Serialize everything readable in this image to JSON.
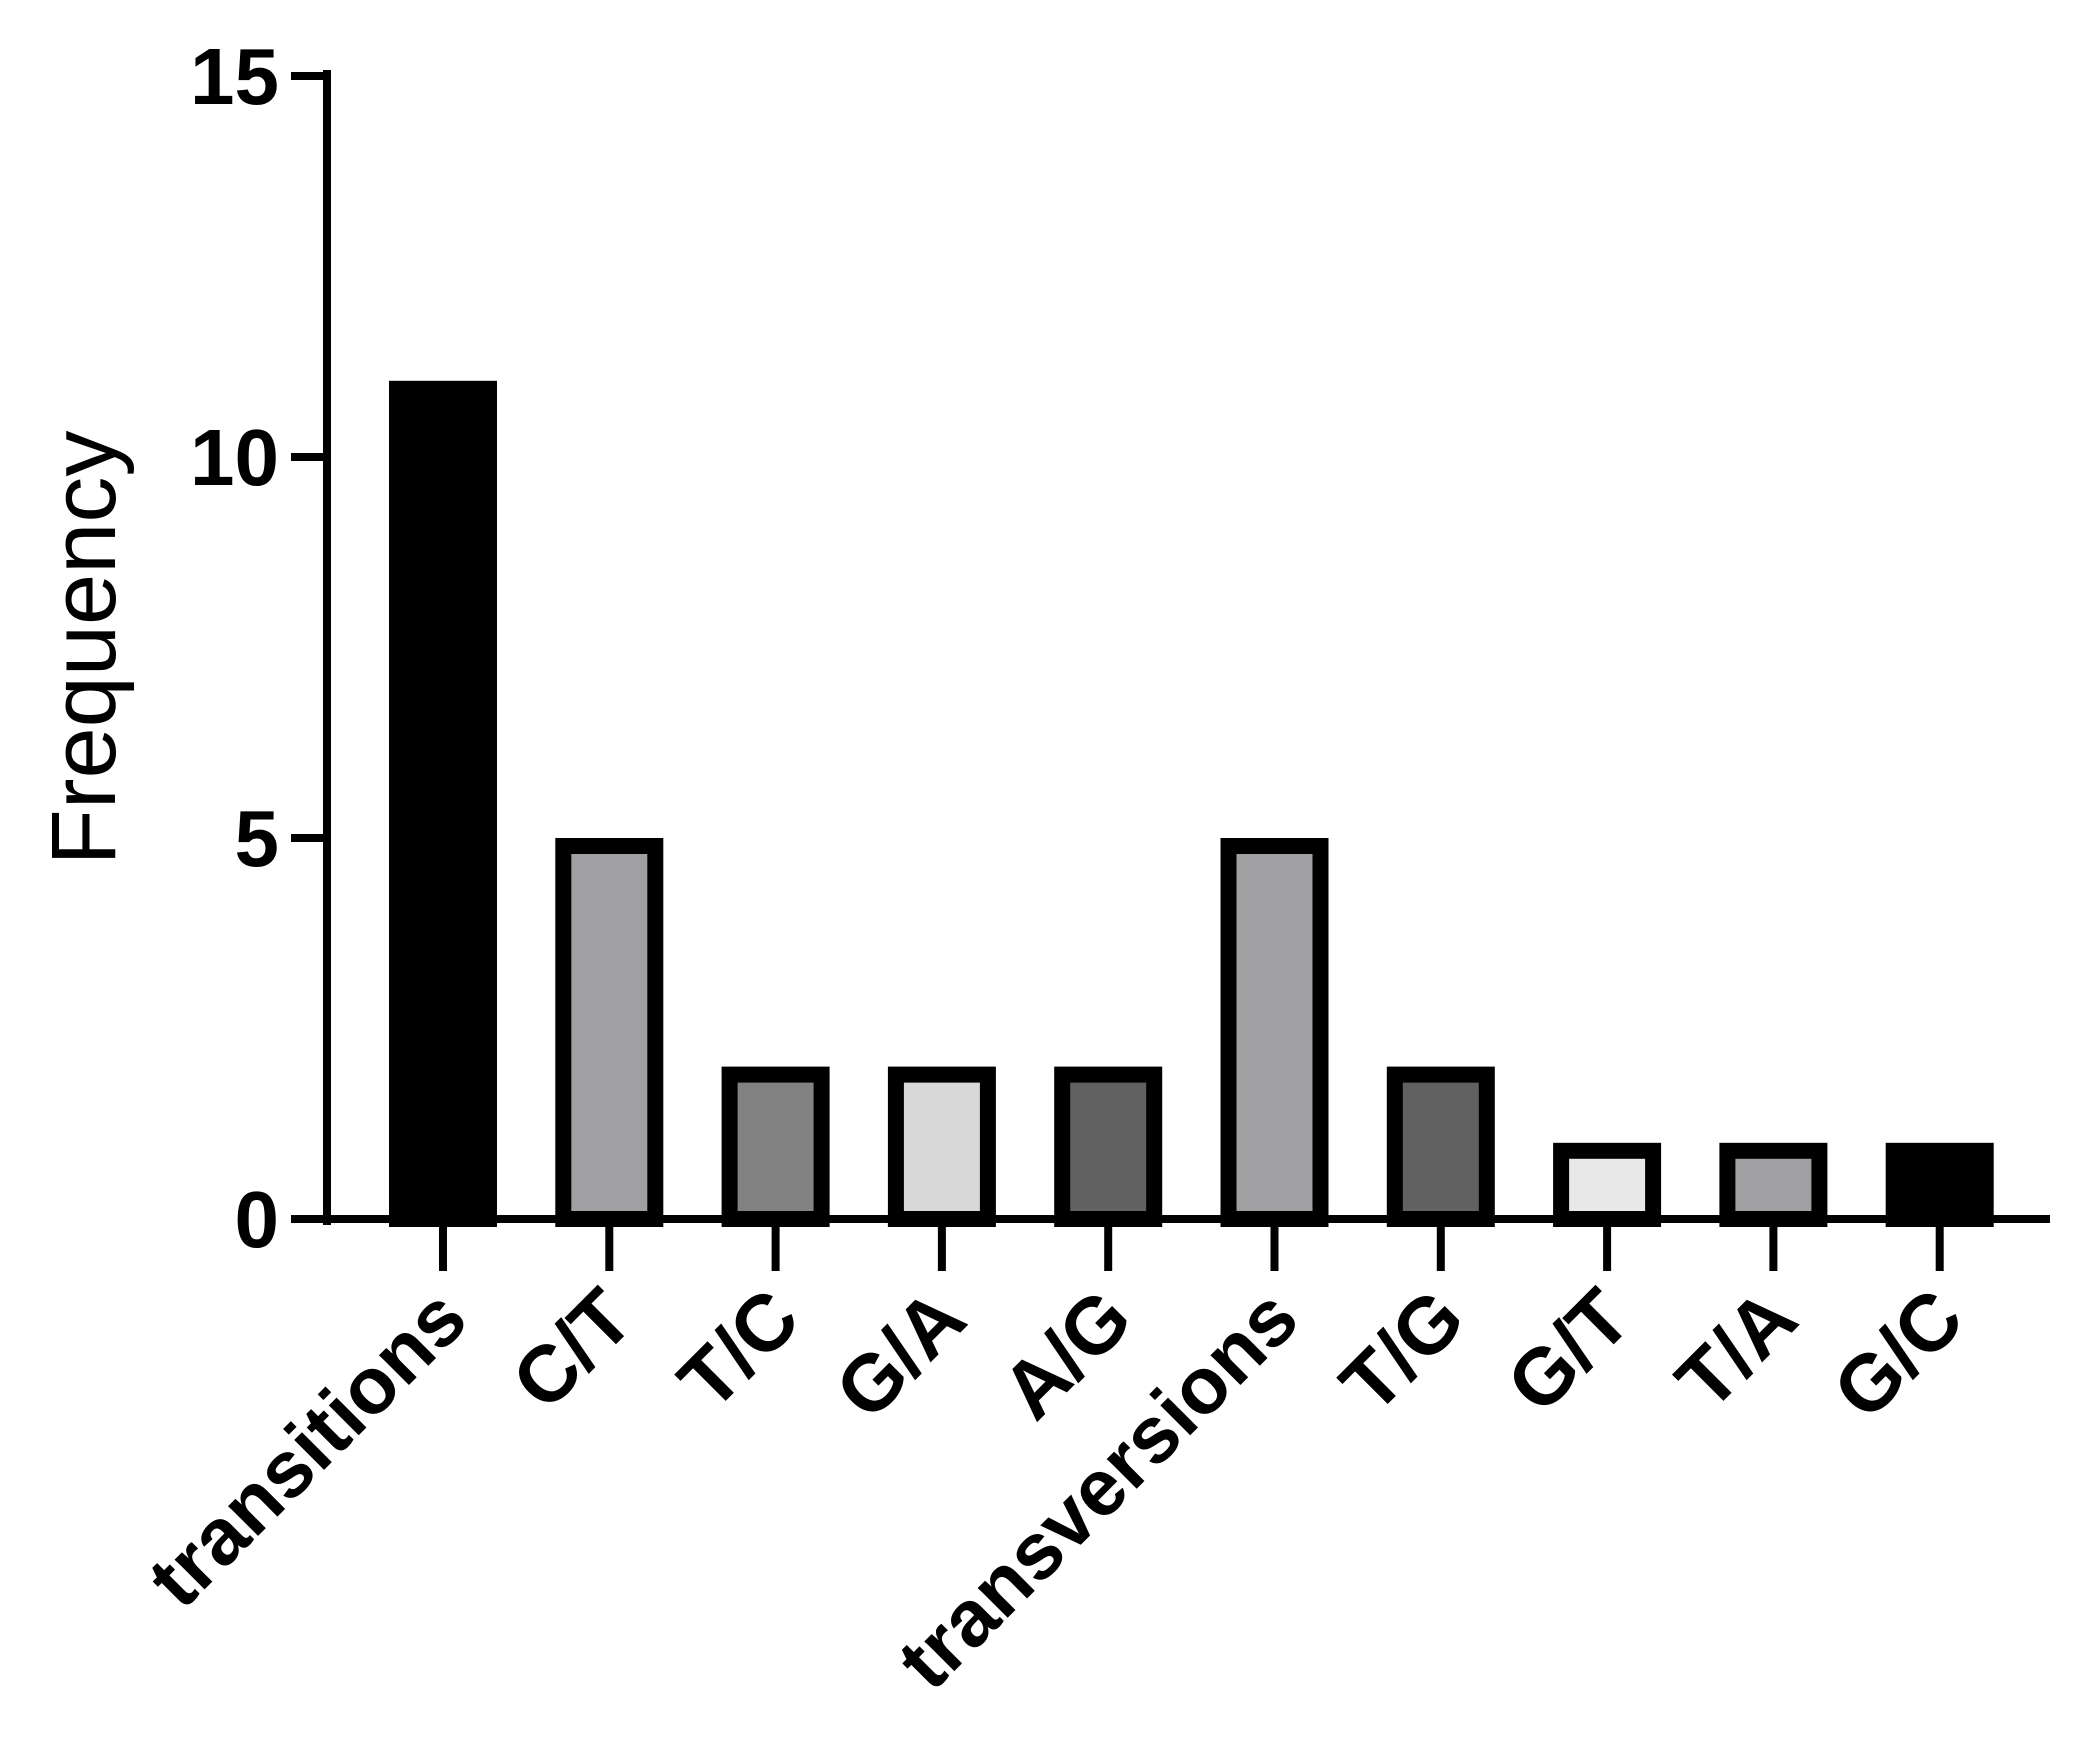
{
  "chart_data": {
    "type": "bar",
    "ylabel": "Frequency",
    "xlabel": "",
    "ylim": [
      0,
      15
    ],
    "yticks": [
      0,
      5,
      10,
      15
    ],
    "categories": [
      "transitions",
      "C/T",
      "T/C",
      "G/A",
      "A/G",
      "transversions",
      "T/G",
      "G/T",
      "T/A",
      "G/C"
    ],
    "values": [
      11,
      5,
      2,
      2,
      2,
      5,
      2,
      1,
      1,
      1
    ],
    "bar_fill_colors": [
      "#000000",
      "#a0a0a2",
      "#828282",
      "#d8d8d8",
      "#616161",
      "#a0a0a2",
      "#616161",
      "#e8e8e8",
      "#a0a0a2",
      "#000000"
    ],
    "bar_outline_color": "#000000",
    "grid": false,
    "legend": "none"
  }
}
